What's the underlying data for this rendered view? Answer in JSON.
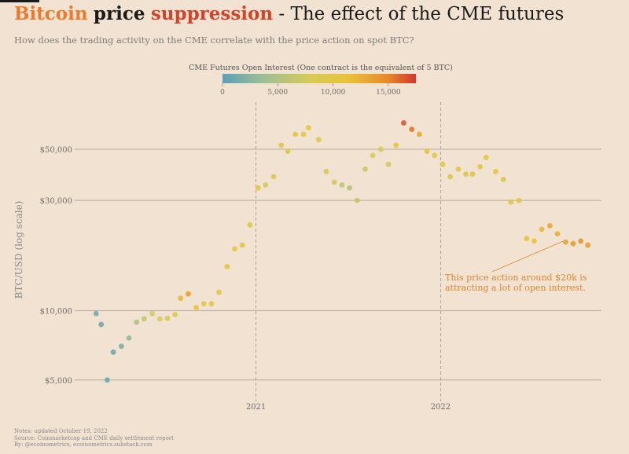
{
  "title": {
    "part1": "Bitcoin",
    "part2": "price",
    "part3": "suppression",
    "part4": " - The effect of the CME futures"
  },
  "subtitle": "How does the trading activity on the CME correlate with the price action on spot BTC?",
  "notes": [
    "Notes: updated October 19, 2022",
    "Source: Coinmarketcap and CME daily settlement report",
    "By: @ecoinometrics, ecoinometrics.substack.com"
  ],
  "colors": {
    "background": "#f1e2d2",
    "title_orange": "#ec7a2a",
    "title_red": "#d2432c",
    "colorbar_stops": [
      "#5b9fb8",
      "#9bbd98",
      "#d6cb58",
      "#e9c23b",
      "#e58a2a",
      "#d4372a"
    ],
    "annotation": "#d9872f"
  },
  "chart_data": {
    "type": "scatter",
    "ylabel": "BTC/USD (log scale)",
    "yscale": "log",
    "ylim": [
      4300,
      80000
    ],
    "xlim": [
      "2020-02-01",
      "2022-11-15"
    ],
    "yticks": [
      {
        "value": 5000,
        "label": "$5,000"
      },
      {
        "value": 10000,
        "label": "$10,000"
      },
      {
        "value": 30000,
        "label": "$30,000"
      },
      {
        "value": 50000,
        "label": "$50,000"
      }
    ],
    "xticks": [
      {
        "value": "2021-01-01",
        "label": "2021"
      },
      {
        "value": "2022-01-01",
        "label": "2022"
      }
    ],
    "grid": "horizontal",
    "colorbar": {
      "title": "CME Futures Open Interest (One contract is the equivalent of 5 BTC)",
      "range": [
        0,
        17500
      ],
      "ticks": [
        {
          "value": 0,
          "label": "0"
        },
        {
          "value": 5000,
          "label": "5,000"
        },
        {
          "value": 10000,
          "label": "10,000"
        },
        {
          "value": 15000,
          "label": "15,000"
        }
      ]
    },
    "annotation": {
      "lines": [
        "This price action around $20k is",
        "attracting a lot of open interest."
      ],
      "target": {
        "x": "2022-09-01",
        "y": 20000
      }
    },
    "points": [
      {
        "x": "2020-02-20",
        "y": 9700,
        "oi": 1400
      },
      {
        "x": "2020-03-01",
        "y": 8700,
        "oi": 1200
      },
      {
        "x": "2020-03-13",
        "y": 5000,
        "oi": 900
      },
      {
        "x": "2020-03-25",
        "y": 6600,
        "oi": 1000
      },
      {
        "x": "2020-04-10",
        "y": 7000,
        "oi": 2000
      },
      {
        "x": "2020-04-25",
        "y": 7600,
        "oi": 3000
      },
      {
        "x": "2020-05-10",
        "y": 8900,
        "oi": 5000
      },
      {
        "x": "2020-05-25",
        "y": 9200,
        "oi": 6500
      },
      {
        "x": "2020-06-10",
        "y": 9700,
        "oi": 7500
      },
      {
        "x": "2020-06-25",
        "y": 9200,
        "oi": 8000
      },
      {
        "x": "2020-07-10",
        "y": 9250,
        "oi": 8500
      },
      {
        "x": "2020-07-25",
        "y": 9600,
        "oi": 9500
      },
      {
        "x": "2020-08-05",
        "y": 11300,
        "oi": 12000
      },
      {
        "x": "2020-08-20",
        "y": 11800,
        "oi": 13500
      },
      {
        "x": "2020-09-05",
        "y": 10300,
        "oi": 11000
      },
      {
        "x": "2020-09-20",
        "y": 10700,
        "oi": 10000
      },
      {
        "x": "2020-10-05",
        "y": 10700,
        "oi": 9500
      },
      {
        "x": "2020-10-20",
        "y": 12000,
        "oi": 10000
      },
      {
        "x": "2020-11-05",
        "y": 15500,
        "oi": 10500
      },
      {
        "x": "2020-11-20",
        "y": 18500,
        "oi": 10000
      },
      {
        "x": "2020-12-05",
        "y": 19200,
        "oi": 9500
      },
      {
        "x": "2020-12-20",
        "y": 23500,
        "oi": 9800
      },
      {
        "x": "2021-01-05",
        "y": 34000,
        "oi": 9000
      },
      {
        "x": "2021-01-20",
        "y": 35000,
        "oi": 8500
      },
      {
        "x": "2021-02-05",
        "y": 38000,
        "oi": 8800
      },
      {
        "x": "2021-02-20",
        "y": 52000,
        "oi": 9500
      },
      {
        "x": "2021-03-05",
        "y": 49000,
        "oi": 9000
      },
      {
        "x": "2021-03-20",
        "y": 58000,
        "oi": 9800
      },
      {
        "x": "2021-04-05",
        "y": 58000,
        "oi": 10000
      },
      {
        "x": "2021-04-15",
        "y": 62000,
        "oi": 10500
      },
      {
        "x": "2021-05-05",
        "y": 55000,
        "oi": 9800
      },
      {
        "x": "2021-05-20",
        "y": 40000,
        "oi": 8500
      },
      {
        "x": "2021-06-05",
        "y": 36000,
        "oi": 7500
      },
      {
        "x": "2021-06-20",
        "y": 35000,
        "oi": 6000
      },
      {
        "x": "2021-07-05",
        "y": 34000,
        "oi": 5500
      },
      {
        "x": "2021-07-20",
        "y": 30000,
        "oi": 6500
      },
      {
        "x": "2021-08-05",
        "y": 41000,
        "oi": 7000
      },
      {
        "x": "2021-08-20",
        "y": 47000,
        "oi": 8000
      },
      {
        "x": "2021-09-05",
        "y": 50000,
        "oi": 8500
      },
      {
        "x": "2021-09-20",
        "y": 43000,
        "oi": 8000
      },
      {
        "x": "2021-10-05",
        "y": 52000,
        "oi": 11000
      },
      {
        "x": "2021-10-20",
        "y": 65000,
        "oi": 16500
      },
      {
        "x": "2021-11-05",
        "y": 61000,
        "oi": 15500
      },
      {
        "x": "2021-11-20",
        "y": 58000,
        "oi": 13000
      },
      {
        "x": "2021-12-05",
        "y": 49000,
        "oi": 11000
      },
      {
        "x": "2021-12-20",
        "y": 47000,
        "oi": 10000
      },
      {
        "x": "2022-01-05",
        "y": 43000,
        "oi": 9500
      },
      {
        "x": "2022-01-20",
        "y": 38000,
        "oi": 9000
      },
      {
        "x": "2022-02-05",
        "y": 41000,
        "oi": 9500
      },
      {
        "x": "2022-02-20",
        "y": 39000,
        "oi": 9000
      },
      {
        "x": "2022-03-05",
        "y": 39000,
        "oi": 9500
      },
      {
        "x": "2022-03-20",
        "y": 42000,
        "oi": 10000
      },
      {
        "x": "2022-04-01",
        "y": 46000,
        "oi": 10500
      },
      {
        "x": "2022-04-20",
        "y": 40000,
        "oi": 10000
      },
      {
        "x": "2022-05-05",
        "y": 37000,
        "oi": 9500
      },
      {
        "x": "2022-05-20",
        "y": 29500,
        "oi": 10000
      },
      {
        "x": "2022-06-05",
        "y": 30000,
        "oi": 10500
      },
      {
        "x": "2022-06-20",
        "y": 20500,
        "oi": 11500
      },
      {
        "x": "2022-07-05",
        "y": 20000,
        "oi": 11500
      },
      {
        "x": "2022-07-20",
        "y": 22500,
        "oi": 12000
      },
      {
        "x": "2022-08-05",
        "y": 23300,
        "oi": 13000
      },
      {
        "x": "2022-08-20",
        "y": 21500,
        "oi": 12500
      },
      {
        "x": "2022-09-05",
        "y": 19800,
        "oi": 13000
      },
      {
        "x": "2022-09-20",
        "y": 19500,
        "oi": 13500
      },
      {
        "x": "2022-10-05",
        "y": 20000,
        "oi": 14000
      },
      {
        "x": "2022-10-19",
        "y": 19200,
        "oi": 13500
      }
    ]
  }
}
